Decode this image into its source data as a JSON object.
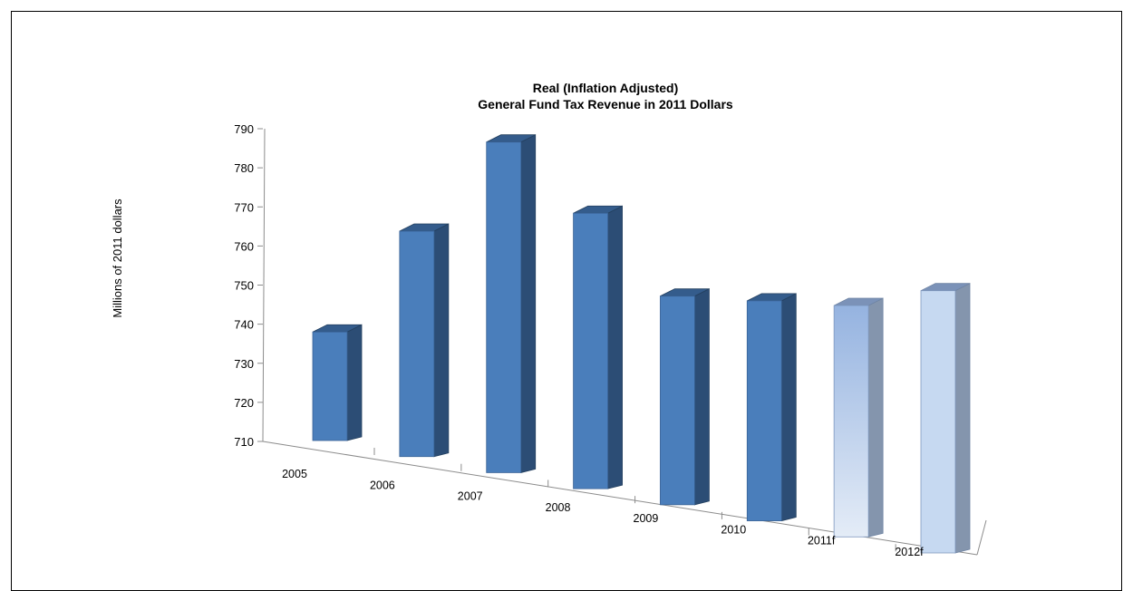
{
  "chart_data": {
    "type": "bar",
    "title": [
      "Real (Inflation Adjusted)",
      "General Fund Tax Revenue in 2011 Dollars"
    ],
    "ylabel": "Millions of 2011  dollars",
    "xlabel": "",
    "ylim": [
      710,
      790
    ],
    "yticks": [
      710,
      720,
      730,
      740,
      750,
      760,
      770,
      780,
      790
    ],
    "categories": [
      "2005",
      "2006",
      "2007",
      "2008",
      "2009",
      "2010",
      "2011f",
      "2012f"
    ],
    "values": [
      738,
      764,
      787,
      769,
      748,
      747,
      746,
      750
    ],
    "forecast": [
      false,
      false,
      false,
      false,
      false,
      false,
      true,
      true
    ],
    "grid": false,
    "legend": "none",
    "colors": {
      "actual_front": "#4a7ebb",
      "actual_side": "#2c4d75",
      "actual_top": "#345c8c",
      "forecast_front_top": "#95b3e0",
      "forecast_front_bottom": "#e4ecf7",
      "forecast_front2": "#c6d9f1",
      "forecast_side": "#8495ad",
      "forecast_top": "#7b92b8"
    }
  }
}
